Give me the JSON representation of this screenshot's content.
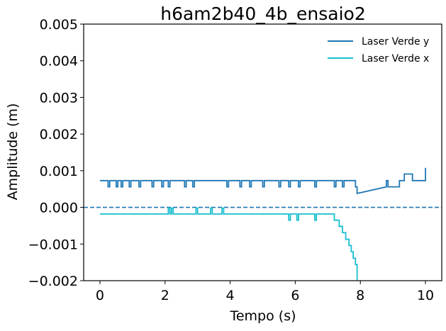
{
  "chart_data": {
    "type": "line",
    "title": "h6am2b40_4b_ensaio2",
    "xlabel": "Tempo (s)",
    "ylabel": "Amplitude (m)",
    "xlim": [
      -0.5,
      10.5
    ],
    "ylim": [
      -0.002,
      0.005
    ],
    "x_ticks": [
      0,
      2,
      4,
      6,
      8,
      10
    ],
    "x_tick_labels": [
      "0",
      "2",
      "4",
      "6",
      "8",
      "10"
    ],
    "y_ticks": [
      -0.002,
      -0.001,
      0.0,
      0.001,
      0.002,
      0.003,
      0.004,
      0.005
    ],
    "y_tick_labels": [
      "−0.002",
      "−0.001",
      "0.000",
      "0.001",
      "0.002",
      "0.003",
      "0.004",
      "0.005"
    ],
    "grid": false,
    "legend_position": "upper right",
    "reference_line": {
      "y": 0.0,
      "style": "dashed",
      "color": "#1f77b4"
    },
    "series": [
      {
        "name": "Laser Verde y",
        "color": "#1f77b4",
        "x": [
          0.0,
          0.25,
          0.25,
          0.3,
          0.3,
          0.5,
          0.5,
          0.55,
          0.55,
          0.65,
          0.65,
          0.7,
          0.7,
          0.9,
          0.9,
          0.95,
          0.95,
          1.2,
          1.2,
          1.25,
          1.25,
          1.6,
          1.6,
          1.65,
          1.65,
          1.9,
          1.9,
          1.95,
          1.95,
          2.1,
          2.1,
          2.15,
          2.15,
          2.6,
          2.6,
          2.65,
          2.65,
          2.85,
          2.85,
          2.9,
          2.9,
          3.9,
          3.9,
          3.95,
          3.95,
          4.3,
          4.3,
          4.35,
          4.35,
          4.6,
          4.6,
          4.65,
          4.65,
          5.0,
          5.0,
          5.05,
          5.05,
          5.5,
          5.5,
          5.55,
          5.55,
          5.8,
          5.8,
          5.85,
          5.85,
          6.1,
          6.1,
          6.15,
          6.15,
          6.6,
          6.6,
          6.65,
          6.65,
          7.2,
          7.2,
          7.25,
          7.25,
          7.45,
          7.45,
          7.5,
          7.5,
          7.85,
          7.85,
          7.9,
          7.9,
          8.8,
          8.8,
          8.85,
          8.85,
          9.2,
          9.2,
          9.35,
          9.35,
          9.6,
          9.6,
          10.0,
          10.0
        ],
        "y": [
          0.00073,
          0.00073,
          0.00056,
          0.00056,
          0.00073,
          0.00073,
          0.00056,
          0.00056,
          0.00073,
          0.00073,
          0.00056,
          0.00056,
          0.00073,
          0.00073,
          0.00056,
          0.00056,
          0.00073,
          0.00073,
          0.00056,
          0.00056,
          0.00073,
          0.00073,
          0.00056,
          0.00056,
          0.00073,
          0.00073,
          0.00056,
          0.00056,
          0.00073,
          0.00073,
          0.00056,
          0.00056,
          0.00073,
          0.00073,
          0.00056,
          0.00056,
          0.00073,
          0.00073,
          0.00056,
          0.00056,
          0.00073,
          0.00073,
          0.00056,
          0.00056,
          0.00073,
          0.00073,
          0.00056,
          0.00056,
          0.00073,
          0.00073,
          0.00056,
          0.00056,
          0.00073,
          0.00073,
          0.00056,
          0.00056,
          0.00073,
          0.00073,
          0.00056,
          0.00056,
          0.00073,
          0.00073,
          0.00056,
          0.00056,
          0.00073,
          0.00073,
          0.00056,
          0.00056,
          0.00073,
          0.00073,
          0.00056,
          0.00056,
          0.00073,
          0.00073,
          0.00056,
          0.00056,
          0.00073,
          0.00073,
          0.00056,
          0.00056,
          0.00073,
          0.00073,
          0.00056,
          0.00056,
          0.00038,
          0.00056,
          0.00073,
          0.00073,
          0.00056,
          0.00056,
          0.00073,
          0.00073,
          0.00091,
          0.00091,
          0.00073,
          0.00073,
          0.00108
        ]
      },
      {
        "name": "Laser Verde x",
        "color": "#17becf",
        "x": [
          0.0,
          2.1,
          2.1,
          2.15,
          2.15,
          2.2,
          2.2,
          2.25,
          2.25,
          2.95,
          2.95,
          3.0,
          3.0,
          3.4,
          3.4,
          3.45,
          3.45,
          3.75,
          3.75,
          3.8,
          3.8,
          5.8,
          5.8,
          5.85,
          5.85,
          6.05,
          6.05,
          6.1,
          6.1,
          6.6,
          6.6,
          6.65,
          6.65,
          7.2,
          7.2,
          7.25,
          7.35,
          7.35,
          7.45,
          7.45,
          7.55,
          7.55,
          7.65,
          7.65,
          7.72,
          7.72,
          7.78,
          7.78,
          7.85,
          7.85,
          7.9,
          7.9
        ],
        "y": [
          -0.00018,
          -0.00018,
          -2e-05,
          -2e-05,
          -0.00018,
          -0.00018,
          -2e-05,
          -2e-05,
          -0.00018,
          -0.00018,
          -2e-05,
          -2e-05,
          -0.00018,
          -0.00018,
          -2e-05,
          -2e-05,
          -0.00018,
          -0.00018,
          -2e-05,
          -2e-05,
          -0.00018,
          -0.00018,
          -0.00035,
          -0.00035,
          -0.00018,
          -0.00018,
          -0.00035,
          -0.00035,
          -0.00018,
          -0.00018,
          -0.00035,
          -0.00035,
          -0.00018,
          -0.00018,
          -0.00035,
          -0.00035,
          -0.00035,
          -0.00052,
          -0.00052,
          -0.00069,
          -0.00069,
          -0.00087,
          -0.00087,
          -0.00104,
          -0.00104,
          -0.00121,
          -0.00121,
          -0.00139,
          -0.00139,
          -0.00156,
          -0.00156,
          -0.002
        ]
      }
    ]
  }
}
